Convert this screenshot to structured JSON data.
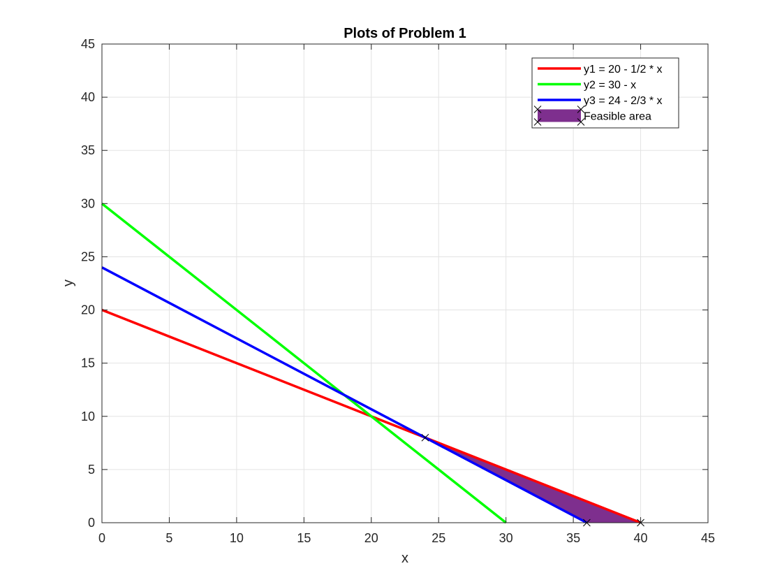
{
  "chart_data": {
    "type": "line",
    "title": "Plots of Problem 1",
    "xlabel": "x",
    "ylabel": "y",
    "xlim": [
      0,
      45
    ],
    "ylim": [
      0,
      45
    ],
    "xticks": [
      "0",
      "5",
      "10",
      "15",
      "20",
      "25",
      "30",
      "35",
      "40",
      "45"
    ],
    "yticks": [
      "0",
      "5",
      "10",
      "15",
      "20",
      "25",
      "30",
      "35",
      "40",
      "45"
    ],
    "grid": true,
    "legend_position": "top-right",
    "series": [
      {
        "name": "y1 = 20 - 1/2 * x",
        "color": "#ff0000",
        "x": [
          0,
          40
        ],
        "y": [
          20,
          0
        ]
      },
      {
        "name": "y2 = 30 - x",
        "color": "#00ff00",
        "x": [
          0,
          30
        ],
        "y": [
          30,
          0
        ]
      },
      {
        "name": "y3 = 24 - 2/3 * x",
        "color": "#0000ff",
        "x": [
          0,
          36
        ],
        "y": [
          24,
          0
        ]
      }
    ],
    "feasible_area": {
      "name": "Feasible area",
      "color": "#7e2f8e",
      "vertices": [
        [
          24,
          8
        ],
        [
          40,
          0
        ],
        [
          36,
          0
        ]
      ]
    },
    "markers": [
      [
        24,
        8
      ],
      [
        36,
        0
      ],
      [
        40,
        0
      ]
    ]
  }
}
